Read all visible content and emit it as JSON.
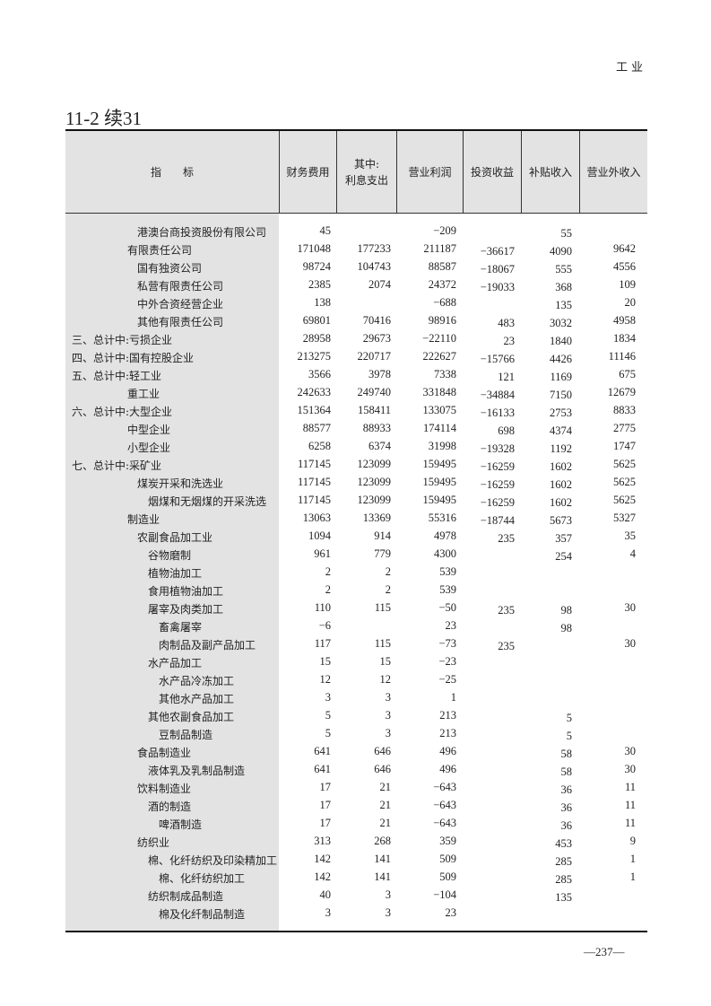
{
  "section": "工业",
  "table_number": "11-2 续31",
  "columns": [
    "指　　标",
    "财务费用",
    "其中:\n利息支出",
    "营业利润",
    "投资收益",
    "补贴收入",
    "营业外收入"
  ],
  "rows": [
    {
      "label": "港澳台商投资股份有限公司",
      "level": 2,
      "values": [
        "45",
        "",
        "−209",
        "",
        "55",
        ""
      ]
    },
    {
      "label": "有限责任公司",
      "level": 1,
      "values": [
        "171048",
        "177233",
        "211187",
        "−36617",
        "4090",
        "9642"
      ]
    },
    {
      "label": "国有独资公司",
      "level": 2,
      "values": [
        "98724",
        "104743",
        "88587",
        "−18067",
        "555",
        "4556"
      ]
    },
    {
      "label": "私营有限责任公司",
      "level": 2,
      "values": [
        "2385",
        "2074",
        "24372",
        "−19033",
        "368",
        "109"
      ]
    },
    {
      "label": "中外合资经营企业",
      "level": 2,
      "values": [
        "138",
        "",
        "−688",
        "",
        "135",
        "20"
      ]
    },
    {
      "label": "其他有限责任公司",
      "level": 2,
      "values": [
        "69801",
        "70416",
        "98916",
        "483",
        "3032",
        "4958"
      ]
    },
    {
      "label": "三、总计中:亏损企业",
      "level": 0,
      "values": [
        "28958",
        "29673",
        "−22110",
        "23",
        "1840",
        "1834"
      ]
    },
    {
      "label": "四、总计中:国有控股企业",
      "level": 0,
      "values": [
        "213275",
        "220717",
        "222627",
        "−15766",
        "4426",
        "11146"
      ]
    },
    {
      "label": "五、总计中:轻工业",
      "level": 0,
      "values": [
        "3566",
        "3978",
        "7338",
        "121",
        "1169",
        "675"
      ]
    },
    {
      "label": "重工业",
      "level": 1,
      "values": [
        "242633",
        "249740",
        "331848",
        "−34884",
        "7150",
        "12679"
      ]
    },
    {
      "label": "六、总计中:大型企业",
      "level": 0,
      "values": [
        "151364",
        "158411",
        "133075",
        "−16133",
        "2753",
        "8833"
      ]
    },
    {
      "label": "中型企业",
      "level": 1,
      "values": [
        "88577",
        "88933",
        "174114",
        "698",
        "4374",
        "2775"
      ]
    },
    {
      "label": "小型企业",
      "level": 1,
      "values": [
        "6258",
        "6374",
        "31998",
        "−19328",
        "1192",
        "1747"
      ]
    },
    {
      "label": "七、总计中:采矿业",
      "level": 0,
      "values": [
        "117145",
        "123099",
        "159495",
        "−16259",
        "1602",
        "5625"
      ]
    },
    {
      "label": "煤炭开采和洗选业",
      "level": 2,
      "values": [
        "117145",
        "123099",
        "159495",
        "−16259",
        "1602",
        "5625"
      ]
    },
    {
      "label": "烟煤和无烟煤的开采洗选",
      "level": 3,
      "values": [
        "117145",
        "123099",
        "159495",
        "−16259",
        "1602",
        "5625"
      ]
    },
    {
      "label": "制造业",
      "level": 1,
      "values": [
        "13063",
        "13369",
        "55316",
        "−18744",
        "5673",
        "5327"
      ]
    },
    {
      "label": "农副食品加工业",
      "level": 2,
      "values": [
        "1094",
        "914",
        "4978",
        "235",
        "357",
        "35"
      ]
    },
    {
      "label": "谷物磨制",
      "level": 3,
      "values": [
        "961",
        "779",
        "4300",
        "",
        "254",
        "4"
      ]
    },
    {
      "label": "植物油加工",
      "level": 3,
      "values": [
        "2",
        "2",
        "539",
        "",
        "",
        ""
      ]
    },
    {
      "label": "食用植物油加工",
      "level": 3,
      "values": [
        "2",
        "2",
        "539",
        "",
        "",
        ""
      ]
    },
    {
      "label": "屠宰及肉类加工",
      "level": 3,
      "values": [
        "110",
        "115",
        "−50",
        "235",
        "98",
        "30"
      ]
    },
    {
      "label": "畜禽屠宰",
      "level": 4,
      "values": [
        "−6",
        "",
        "23",
        "",
        "98",
        ""
      ]
    },
    {
      "label": "肉制品及副产品加工",
      "level": 4,
      "values": [
        "117",
        "115",
        "−73",
        "235",
        "",
        "30"
      ]
    },
    {
      "label": "水产品加工",
      "level": 3,
      "values": [
        "15",
        "15",
        "−23",
        "",
        "",
        ""
      ]
    },
    {
      "label": "水产品冷冻加工",
      "level": 4,
      "values": [
        "12",
        "12",
        "−25",
        "",
        "",
        ""
      ]
    },
    {
      "label": "其他水产品加工",
      "level": 4,
      "values": [
        "3",
        "3",
        "1",
        "",
        "",
        ""
      ]
    },
    {
      "label": "其他农副食品加工",
      "level": 3,
      "values": [
        "5",
        "3",
        "213",
        "",
        "5",
        ""
      ]
    },
    {
      "label": "豆制品制造",
      "level": 4,
      "values": [
        "5",
        "3",
        "213",
        "",
        "5",
        ""
      ]
    },
    {
      "label": "食品制造业",
      "level": 2,
      "values": [
        "641",
        "646",
        "496",
        "",
        "58",
        "30"
      ]
    },
    {
      "label": "液体乳及乳制品制造",
      "level": 3,
      "values": [
        "641",
        "646",
        "496",
        "",
        "58",
        "30"
      ]
    },
    {
      "label": "饮料制造业",
      "level": 2,
      "values": [
        "17",
        "21",
        "−643",
        "",
        "36",
        "11"
      ]
    },
    {
      "label": "酒的制造",
      "level": 3,
      "values": [
        "17",
        "21",
        "−643",
        "",
        "36",
        "11"
      ]
    },
    {
      "label": "啤酒制造",
      "level": 4,
      "values": [
        "17",
        "21",
        "−643",
        "",
        "36",
        "11"
      ]
    },
    {
      "label": "纺织业",
      "level": 2,
      "values": [
        "313",
        "268",
        "359",
        "",
        "453",
        "9"
      ]
    },
    {
      "label": "棉、化纤纺织及印染精加工",
      "level": 3,
      "values": [
        "142",
        "141",
        "509",
        "",
        "285",
        "1"
      ]
    },
    {
      "label": "棉、化纤纺织加工",
      "level": 4,
      "values": [
        "142",
        "141",
        "509",
        "",
        "285",
        "1"
      ]
    },
    {
      "label": "纺织制成品制造",
      "level": 3,
      "values": [
        "40",
        "3",
        "−104",
        "",
        "135",
        ""
      ]
    },
    {
      "label": "棉及化纤制品制造",
      "level": 4,
      "values": [
        "3",
        "3",
        "23",
        "",
        "",
        ""
      ]
    }
  ],
  "page_number": "—237—"
}
